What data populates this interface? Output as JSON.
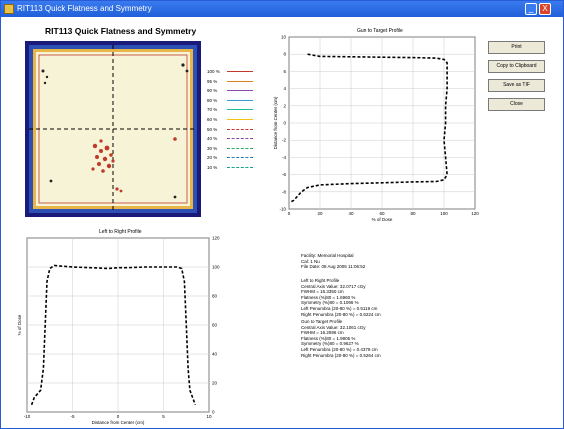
{
  "window": {
    "title": "RIT113 Quick Flatness and Symmetry",
    "minimize_glyph": "_",
    "close_glyph": "X",
    "accent_color": "#1f5fd9"
  },
  "heading": "RIT113 Quick Flatness and Symmetry",
  "contour_map": {
    "background_color": "#1a1a7a",
    "field_color": "#f7f3d6"
  },
  "legend": [
    {
      "label": "100 %",
      "color": "#c0392b",
      "style": "solid"
    },
    {
      "label": "95 %",
      "color": "#e67e22",
      "style": "solid"
    },
    {
      "label": "90 %",
      "color": "#8e44ad",
      "style": "solid"
    },
    {
      "label": "80 %",
      "color": "#3498db",
      "style": "solid"
    },
    {
      "label": "70 %",
      "color": "#1abc9c",
      "style": "solid"
    },
    {
      "label": "60 %",
      "color": "#f1c40f",
      "style": "solid"
    },
    {
      "label": "50 %",
      "color": "#c0392b",
      "style": "dashed"
    },
    {
      "label": "40 %",
      "color": "#8e44ad",
      "style": "dashed"
    },
    {
      "label": "30 %",
      "color": "#27ae60",
      "style": "dashed"
    },
    {
      "label": "20 %",
      "color": "#2980b9",
      "style": "dashed"
    },
    {
      "label": "10 %",
      "color": "#16a085",
      "style": "dashed"
    }
  ],
  "buttons": {
    "print": "Print",
    "copy": "Copy to Clipboard",
    "save": "Save as TIF",
    "close": "Close"
  },
  "gun_target": {
    "title": "Gun to Target Profile",
    "xlabel": "% of Dose",
    "ylabel": "Distance from Center (cm)"
  },
  "left_right": {
    "title": "Left to Right Profile",
    "xlabel": "Distance from Center (cm)",
    "ylabel": "% of Dose"
  },
  "chart_data": [
    {
      "type": "line",
      "title": "Gun to Target Profile",
      "xlabel": "% of Dose",
      "ylabel": "Distance from Center (cm)",
      "xlim": [
        0,
        120
      ],
      "ylim": [
        -10,
        10
      ],
      "xticks": [
        "0",
        "20",
        "40",
        "60",
        "80",
        "100",
        "120"
      ],
      "yticks": [
        "10",
        "8",
        "6",
        "4",
        "2",
        "0",
        "-2",
        "-4",
        "-6",
        "-8",
        "-10"
      ],
      "grid": true,
      "series": [
        {
          "points": [
            [
              12,
              8.0
            ],
            [
              15,
              7.9
            ],
            [
              20,
              7.75
            ],
            [
              40,
              7.7
            ],
            [
              60,
              7.65
            ],
            [
              80,
              7.6
            ],
            [
              95,
              7.55
            ],
            [
              100,
              7.4
            ],
            [
              102,
              7.0
            ],
            [
              102,
              4.0
            ],
            [
              101,
              2.0
            ],
            [
              101,
              0.0
            ],
            [
              100,
              -2.0
            ],
            [
              101,
              -4.0
            ],
            [
              102,
              -6.0
            ],
            [
              100,
              -6.6
            ],
            [
              95,
              -6.8
            ],
            [
              80,
              -6.85
            ],
            [
              60,
              -6.95
            ],
            [
              40,
              -7.05
            ],
            [
              20,
              -7.2
            ],
            [
              12,
              -7.5
            ],
            [
              8,
              -8.0
            ],
            [
              5,
              -8.6
            ],
            [
              3,
              -9.0
            ],
            [
              1,
              -9.2
            ]
          ]
        }
      ]
    },
    {
      "type": "line",
      "title": "Left to Right Profile",
      "xlabel": "Distance from Center (cm)",
      "ylabel": "% of Dose",
      "xlim": [
        -10,
        10
      ],
      "ylim": [
        0,
        120
      ],
      "xticks": [
        "-10",
        "-5",
        "0",
        "5",
        "10"
      ],
      "yticks": [
        "0",
        "20",
        "40",
        "60",
        "80",
        "100",
        "120"
      ],
      "grid": true,
      "series": [
        {
          "points": [
            [
              -9.5,
              5
            ],
            [
              -9.2,
              10
            ],
            [
              -8.5,
              15
            ],
            [
              -8.2,
              30
            ],
            [
              -8.0,
              60
            ],
            [
              -7.8,
              90
            ],
            [
              -7.5,
              99
            ],
            [
              -7.0,
              101
            ],
            [
              -5.0,
              100
            ],
            [
              -3.0,
              99.5
            ],
            [
              -1.0,
              99
            ],
            [
              0.0,
              99.5
            ],
            [
              1.0,
              99.5
            ],
            [
              3.0,
              100
            ],
            [
              5.0,
              100
            ],
            [
              6.5,
              100
            ],
            [
              7.0,
              99
            ],
            [
              7.3,
              90
            ],
            [
              7.5,
              60
            ],
            [
              7.7,
              30
            ],
            [
              7.9,
              15
            ],
            [
              8.2,
              10
            ],
            [
              8.5,
              5
            ]
          ]
        }
      ]
    }
  ],
  "info": {
    "facility": "Facility: Memorial Hospital",
    "cal": "Cal: 1 Nu",
    "file_date": "File Date: 08 Aug 2005 11:06:52",
    "lr_title": "Left to Right Profile",
    "lr_central_axis": "Central Axis Value: 32.0717 cGy",
    "lr_fwhm": "FWHM = 16.3350 cm",
    "lr_flatness": "Flatness (%)80 = 1.6960 %",
    "lr_symmetry": "Symmetry (%)80 = 0.1096 %",
    "lr_left_penumbra": "Left Penumbra (20-80 %) = 0.5119 cm",
    "lr_right_penumbra": "Right Penumbra (20-80 %) = 0.6224 cm",
    "gt_title": "Gun to Target Profile",
    "gt_central_axis": "Central Axis Value: 32.1061 cGy",
    "gt_fwhm": "FWHM = 16.2596 cm",
    "gt_flatness": "Flatness (%)80 = 1.9905 %",
    "gt_symmetry": "Symmetry (%)80 = 0.9627 %",
    "gt_left_penumbra": "Left Penumbra (20-80 %) = 0.4379 cm",
    "gt_right_penumbra": "Right Penumbra (20-80 %) = 0.5264 cm"
  }
}
